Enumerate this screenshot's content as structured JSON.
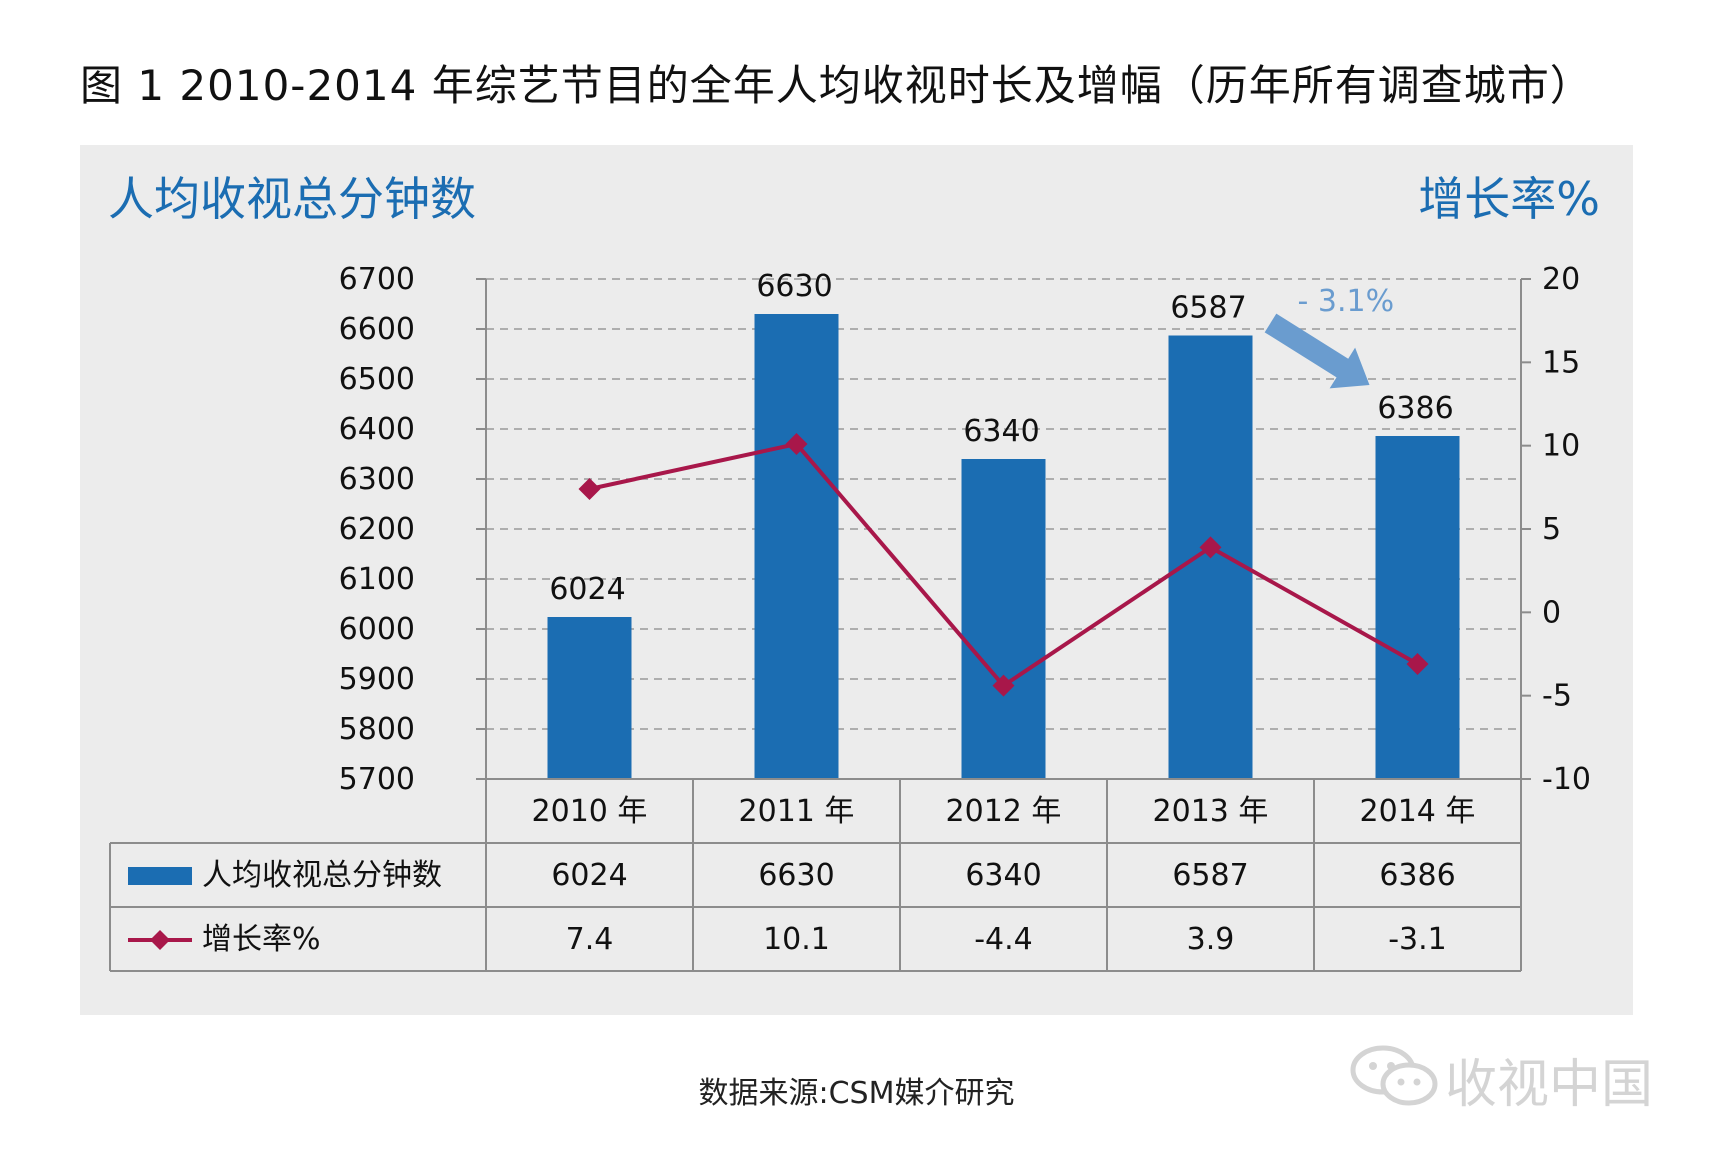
{
  "figure_title": "图 1  2010-2014 年综艺节目的全年人均收视时长及增幅（历年所有调查城市）",
  "source": "数据来源:CSM媒介研究",
  "watermark": "收视中国",
  "colors": {
    "bar": "#1b6db2",
    "line": "#a8174a",
    "axis_title": "#1b6db2",
    "annotation": "#6a9ccf",
    "panel": "#ececec"
  },
  "chart_data": {
    "type": "bar",
    "left_axis_title": "人均收视总分钟数",
    "right_axis_title": "增长率%",
    "categories": [
      "2010 年",
      "2011 年",
      "2012 年",
      "2013 年",
      "2014 年"
    ],
    "left_ylim": [
      5700,
      6700
    ],
    "left_ticks": [
      "6700",
      "6600",
      "6500",
      "6400",
      "6300",
      "6200",
      "6100",
      "6000",
      "5900",
      "5800",
      "5700"
    ],
    "right_ylim": [
      -10,
      20
    ],
    "right_ticks": [
      "20",
      "15",
      "10",
      "5",
      "0",
      "-5",
      "-10"
    ],
    "series": [
      {
        "name": "人均收视总分钟数",
        "kind": "bar",
        "axis": "left",
        "values": [
          6024,
          6630,
          6340,
          6587,
          6386
        ],
        "labels": [
          "6024",
          "6630",
          "6340",
          "6587",
          "6386"
        ]
      },
      {
        "name": "增长率%",
        "kind": "line",
        "axis": "right",
        "values": [
          7.4,
          10.1,
          -4.4,
          3.9,
          -3.1
        ],
        "labels": [
          "7.4",
          "10.1",
          "-4.4",
          "3.9",
          "-3.1"
        ]
      }
    ],
    "annotation": {
      "text": "- 3.1%",
      "from_category": 3,
      "to_category": 4
    },
    "grid": "dashed horizontal",
    "data_table": true
  }
}
